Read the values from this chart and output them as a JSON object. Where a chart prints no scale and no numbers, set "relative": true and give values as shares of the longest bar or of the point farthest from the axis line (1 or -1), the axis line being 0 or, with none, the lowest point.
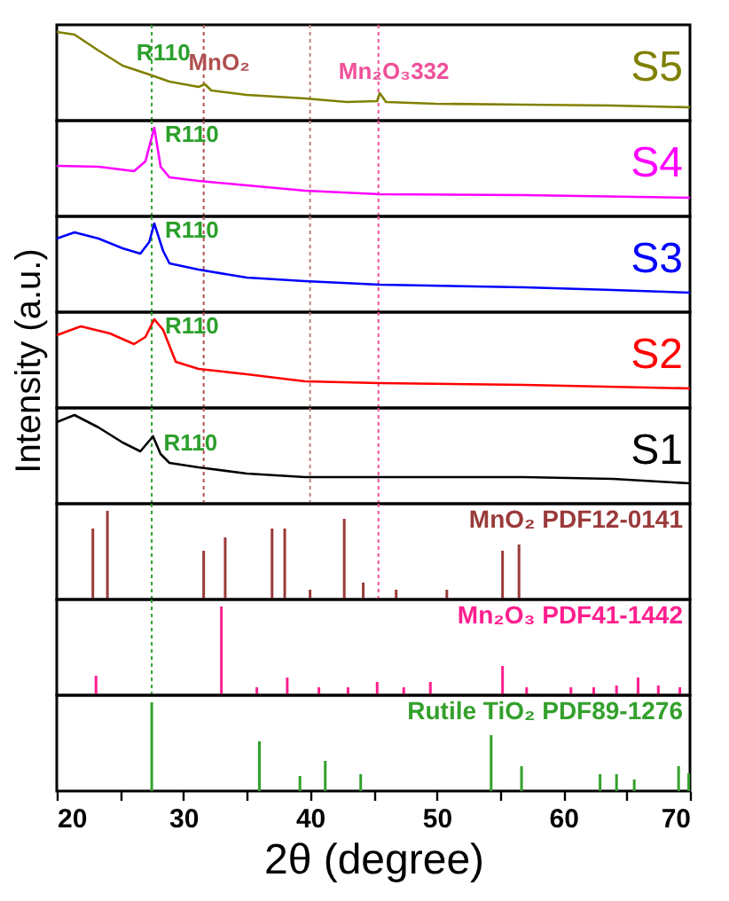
{
  "chart_data": [
    {
      "type": "line",
      "relative": true,
      "xlim": [
        20,
        70
      ],
      "tick_labels": false,
      "series": [
        {
          "name": "S5",
          "color": "#808000",
          "x": [
            20,
            21.4,
            23.3,
            25.2,
            27.3,
            28.9,
            31.2,
            31.7,
            32.2,
            35,
            39.6,
            42.9,
            45.3,
            45.5,
            46,
            49.9,
            56.9,
            63.9,
            70
          ],
          "values": [
            1,
            0.97,
            0.79,
            0.62,
            0.52,
            0.44,
            0.38,
            0.41,
            0.34,
            0.29,
            0.25,
            0.21,
            0.22,
            0.31,
            0.21,
            0.19,
            0.18,
            0.17,
            0.15
          ]
        }
      ],
      "annotations": [
        {
          "text": "R110",
          "x": 27.3,
          "y": 0.52
        },
        {
          "text": "MnO₂",
          "x": 31.7,
          "y": 0.41
        },
        {
          "text": "Mn₂O₃332",
          "x": 45.5,
          "y": 0.31
        }
      ],
      "ref_lines": [
        {
          "axis": "x",
          "value": 27.5,
          "color": "#2ca02c",
          "line_style": "dotted"
        },
        {
          "axis": "x",
          "value": 31.6,
          "color": "#b05050",
          "line_style": "dotted"
        },
        {
          "axis": "x",
          "value": 40.0,
          "color": "#c08080",
          "line_style": "dotted"
        },
        {
          "axis": "x",
          "value": 45.4,
          "color": "#f0509a",
          "line_style": "dotted"
        }
      ]
    },
    {
      "type": "line",
      "relative": true,
      "xlim": [
        20,
        70
      ],
      "tick_labels": false,
      "series": [
        {
          "name": "S4",
          "color": "#ff00ff",
          "x": [
            20,
            23.3,
            26.1,
            27.0,
            27.7,
            28.2,
            28.9,
            31.2,
            35,
            39.6,
            45.5,
            56.9,
            70
          ],
          "values": [
            0.57,
            0.56,
            0.51,
            0.62,
            1,
            0.56,
            0.44,
            0.4,
            0.35,
            0.29,
            0.25,
            0.24,
            0.21
          ]
        }
      ],
      "annotations": [
        {
          "text": "R110",
          "x": 27.7,
          "y": 1
        }
      ],
      "ref_lines": [
        {
          "axis": "x",
          "value": 27.5,
          "color": "#2ca02c",
          "line_style": "dotted"
        },
        {
          "axis": "x",
          "value": 31.6,
          "color": "#b05050",
          "line_style": "dotted"
        },
        {
          "axis": "x",
          "value": 40.0,
          "color": "#c08080",
          "line_style": "dotted"
        },
        {
          "axis": "x",
          "value": 45.4,
          "color": "#f0509a",
          "line_style": "dotted"
        }
      ]
    },
    {
      "type": "line",
      "relative": true,
      "xlim": [
        20,
        70
      ],
      "tick_labels": false,
      "series": [
        {
          "name": "S3",
          "color": "#0000ff",
          "x": [
            20,
            21.4,
            23.3,
            25.2,
            26.6,
            27.3,
            27.7,
            28.4,
            28.9,
            31.2,
            35,
            39.6,
            45.5,
            56.9,
            63.9,
            70
          ],
          "values": [
            0.83,
            0.9,
            0.83,
            0.72,
            0.66,
            0.79,
            1,
            0.69,
            0.55,
            0.48,
            0.39,
            0.35,
            0.31,
            0.28,
            0.25,
            0.22
          ]
        }
      ],
      "annotations": [
        {
          "text": "R110",
          "x": 27.7,
          "y": 1
        }
      ],
      "ref_lines": [
        {
          "axis": "x",
          "value": 27.5,
          "color": "#2ca02c",
          "line_style": "dotted"
        },
        {
          "axis": "x",
          "value": 31.6,
          "color": "#b05050",
          "line_style": "dotted"
        },
        {
          "axis": "x",
          "value": 40.0,
          "color": "#c08080",
          "line_style": "dotted"
        },
        {
          "axis": "x",
          "value": 45.4,
          "color": "#f0509a",
          "line_style": "dotted"
        }
      ]
    },
    {
      "type": "line",
      "relative": true,
      "xlim": [
        20,
        70
      ],
      "tick_labels": false,
      "ylabel": "Intensity (a.u.)",
      "series": [
        {
          "name": "S2",
          "color": "#ff0000",
          "x": [
            20,
            21.9,
            24.2,
            26.1,
            27.0,
            27.7,
            28.4,
            29.4,
            31.2,
            35,
            39.6,
            45.5,
            56.9,
            70
          ],
          "values": [
            0.82,
            0.92,
            0.84,
            0.72,
            0.8,
            1,
            0.88,
            0.52,
            0.44,
            0.38,
            0.3,
            0.28,
            0.26,
            0.22
          ]
        }
      ],
      "annotations": [
        {
          "text": "R110",
          "x": 27.7,
          "y": 1
        }
      ],
      "ref_lines": [
        {
          "axis": "x",
          "value": 27.5,
          "color": "#2ca02c",
          "line_style": "dotted"
        },
        {
          "axis": "x",
          "value": 31.6,
          "color": "#b05050",
          "line_style": "dotted"
        },
        {
          "axis": "x",
          "value": 40.0,
          "color": "#c08080",
          "line_style": "dotted"
        },
        {
          "axis": "x",
          "value": 45.4,
          "color": "#f0509a",
          "line_style": "dotted"
        }
      ]
    },
    {
      "type": "line",
      "relative": true,
      "xlim": [
        20,
        70
      ],
      "tick_labels": false,
      "series": [
        {
          "name": "S1",
          "color": "#000000",
          "x": [
            20,
            21.4,
            23.3,
            25.2,
            26.6,
            27.6,
            28.2,
            28.9,
            31.2,
            35,
            39.6,
            45.5,
            56.9,
            63.9,
            70
          ],
          "values": [
            0.92,
            1,
            0.86,
            0.69,
            0.59,
            0.76,
            0.56,
            0.46,
            0.41,
            0.34,
            0.3,
            0.3,
            0.3,
            0.28,
            0.23
          ]
        }
      ],
      "annotations": [
        {
          "text": "R110",
          "x": 27.6,
          "y": 0.76
        }
      ],
      "ref_lines": [
        {
          "axis": "x",
          "value": 27.5,
          "color": "#2ca02c",
          "line_style": "dotted"
        },
        {
          "axis": "x",
          "value": 31.6,
          "color": "#b05050",
          "line_style": "dotted"
        },
        {
          "axis": "x",
          "value": 40.0,
          "color": "#c08080",
          "line_style": "dotted"
        },
        {
          "axis": "x",
          "value": 45.4,
          "color": "#f0509a",
          "line_style": "dotted"
        }
      ]
    },
    {
      "type": "bar",
      "relative": true,
      "xlim": [
        20,
        70
      ],
      "tick_labels": false,
      "series": [
        {
          "name": "MnO₂ PDF12-0141",
          "color": "#9b3a3a",
          "x": [
            22.85,
            24.0,
            31.6,
            33.3,
            37.0,
            38.0,
            40.0,
            42.7,
            44.2,
            46.8,
            50.8,
            55.2,
            56.5
          ],
          "values": [
            0.8,
            1,
            0.55,
            0.7,
            0.8,
            0.8,
            0.11,
            0.91,
            0.19,
            0.11,
            0.11,
            0.55,
            0.62
          ]
        }
      ],
      "ref_lines": [
        {
          "axis": "x",
          "value": 27.5,
          "color": "#2ca02c",
          "line_style": "dotted"
        },
        {
          "axis": "x",
          "value": 45.4,
          "color": "#f0509a",
          "line_style": "dotted"
        }
      ]
    },
    {
      "type": "bar",
      "relative": true,
      "xlim": [
        20,
        70
      ],
      "tick_labels": false,
      "series": [
        {
          "name": "Mn₂O₃ PDF41-1442",
          "color": "#ff1f8f",
          "x": [
            23.1,
            33.0,
            35.8,
            38.2,
            40.7,
            43.0,
            45.3,
            47.4,
            49.5,
            55.2,
            57.1,
            60.6,
            62.4,
            64.2,
            65.9,
            67.5,
            69.2
          ],
          "values": [
            0.22,
            1,
            0.09,
            0.2,
            0.09,
            0.09,
            0.15,
            0.09,
            0.15,
            0.33,
            0.09,
            0.09,
            0.09,
            0.11,
            0.2,
            0.11,
            0.09
          ]
        }
      ],
      "ref_lines": [
        {
          "axis": "x",
          "value": 27.5,
          "color": "#2ca02c",
          "line_style": "dotted"
        }
      ]
    },
    {
      "type": "bar",
      "relative": true,
      "xlim": [
        20,
        70
      ],
      "tick_labels": "x",
      "xlabel": "2θ (degree)",
      "xticks": [
        20,
        {
          "value": 25,
          "label": null
        },
        30,
        {
          "value": 35,
          "label": null
        },
        40,
        {
          "value": 45,
          "label": null
        },
        50,
        {
          "value": 55,
          "label": null
        },
        60,
        {
          "value": 65,
          "label": null
        },
        70
      ],
      "series": [
        {
          "name": "Rutile TiO₂  PDF89-1276",
          "color": "#33a02c",
          "x": [
            27.5,
            36.0,
            39.2,
            41.2,
            44.0,
            54.3,
            56.7,
            62.9,
            64.2,
            65.6,
            69.1,
            69.9
          ],
          "values": [
            1,
            0.56,
            0.17,
            0.34,
            0.19,
            0.63,
            0.28,
            0.19,
            0.19,
            0.13,
            0.28,
            0.2
          ]
        }
      ]
    }
  ]
}
